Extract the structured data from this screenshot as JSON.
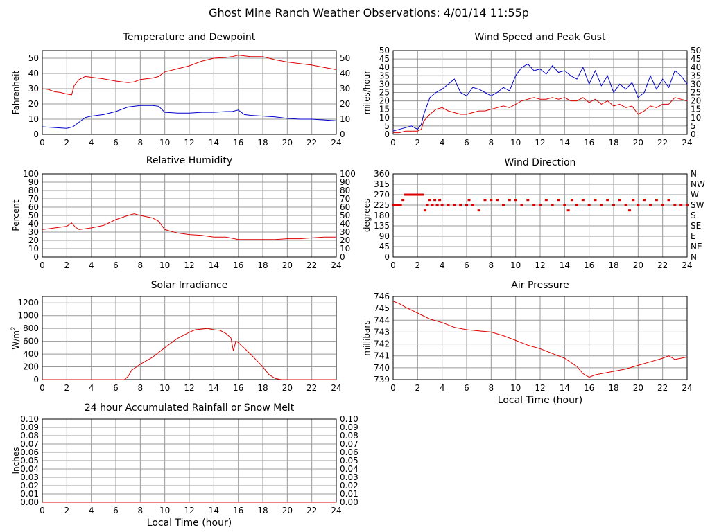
{
  "page_title": "Ghost Mine Ranch Weather Observations: 4/01/14 11:55p",
  "colors": {
    "series_red": "#dd0000",
    "series_blue": "#0000cc",
    "grid": "#999999",
    "frame": "#000000"
  },
  "chart_data": [
    {
      "id": "temperature",
      "type": "line",
      "title": "Temperature and Dewpoint",
      "xlabel": "",
      "ylabel": "Fahrenheit",
      "xlim": [
        0,
        24
      ],
      "ylim": [
        0,
        55
      ],
      "xticks": [
        0,
        2,
        4,
        6,
        8,
        10,
        12,
        14,
        16,
        18,
        20,
        22,
        24
      ],
      "yticks": [
        0,
        10,
        20,
        30,
        40,
        50
      ],
      "right_yticks": [
        "0",
        "10",
        "20",
        "30",
        "40",
        "50"
      ],
      "grid": true,
      "series": [
        {
          "color": "#dd0000",
          "x": [
            0,
            0.5,
            1,
            1.5,
            2,
            2.4,
            2.6,
            3,
            3.5,
            4,
            5,
            6,
            7,
            7.5,
            8,
            9,
            9.5,
            10,
            11,
            12,
            13,
            14,
            15,
            15.5,
            16,
            16.5,
            17,
            18,
            19,
            20,
            21,
            22,
            23,
            24
          ],
          "y": [
            30,
            29.5,
            28,
            27.5,
            26.5,
            26,
            32,
            36,
            38,
            37.5,
            36.5,
            35,
            34,
            34.5,
            36,
            37,
            38,
            41,
            43,
            45,
            48,
            50,
            50.5,
            51,
            52,
            51.5,
            51,
            51,
            49,
            47.5,
            46.5,
            45.5,
            44,
            42.5
          ]
        },
        {
          "color": "#0000cc",
          "x": [
            0,
            1,
            2,
            2.5,
            3,
            3.5,
            4,
            5,
            6,
            7,
            8,
            9,
            9.5,
            10,
            11,
            12,
            13,
            14,
            15,
            15.5,
            16,
            16.5,
            17,
            18,
            19,
            20,
            21,
            22,
            23,
            24
          ],
          "y": [
            5,
            4.5,
            4,
            5,
            8,
            11,
            12,
            13,
            15,
            18,
            19,
            19,
            18.5,
            14.5,
            14,
            14,
            14.5,
            14.5,
            15,
            15,
            16,
            13,
            12.5,
            12,
            11.5,
            10.5,
            10,
            10,
            9.5,
            9
          ]
        }
      ]
    },
    {
      "id": "wind_speed",
      "type": "line",
      "title": "Wind Speed and Peak Gust",
      "xlabel": "",
      "ylabel": "miles/hour",
      "xlim": [
        0,
        24
      ],
      "ylim": [
        0,
        50
      ],
      "xticks": [
        0,
        2,
        4,
        6,
        8,
        10,
        12,
        14,
        16,
        18,
        20,
        22,
        24
      ],
      "yticks": [
        0,
        5,
        10,
        15,
        20,
        25,
        30,
        35,
        40,
        45,
        50
      ],
      "right_yticks": [
        "0",
        "5",
        "10",
        "15",
        "20",
        "25",
        "30",
        "35",
        "40",
        "45",
        "50"
      ],
      "grid": true,
      "series": [
        {
          "color": "#0000cc",
          "x": [
            0,
            0.5,
            1,
            1.5,
            2,
            2.3,
            2.5,
            3,
            3.5,
            4,
            4.5,
            5,
            5.5,
            6,
            6.5,
            7,
            7.5,
            8,
            8.5,
            9,
            9.5,
            10,
            10.5,
            11,
            11.5,
            12,
            12.5,
            13,
            13.5,
            14,
            14.5,
            15,
            15.5,
            16,
            16.5,
            17,
            17.5,
            18,
            18.5,
            19,
            19.5,
            20,
            20.5,
            21,
            21.5,
            22,
            22.5,
            23,
            23.5,
            24
          ],
          "y": [
            2,
            3,
            4,
            5,
            3,
            6,
            12,
            22,
            25,
            27,
            30,
            33,
            25,
            23,
            28,
            27,
            25,
            23,
            25,
            28,
            26,
            35,
            40,
            42,
            38,
            39,
            36,
            41,
            37,
            38,
            35,
            33,
            40,
            30,
            38,
            29,
            35,
            25,
            30,
            27,
            31,
            22,
            25,
            35,
            27,
            33,
            28,
            38,
            35,
            30
          ]
        },
        {
          "color": "#dd0000",
          "x": [
            0,
            0.5,
            1,
            1.5,
            2,
            2.3,
            2.5,
            3,
            3.5,
            4,
            4.5,
            5,
            5.5,
            6,
            6.5,
            7,
            7.5,
            8,
            8.5,
            9,
            9.5,
            10,
            10.5,
            11,
            11.5,
            12,
            12.5,
            13,
            13.5,
            14,
            14.5,
            15,
            15.5,
            16,
            16.5,
            17,
            17.5,
            18,
            18.5,
            19,
            19.5,
            20,
            20.5,
            21,
            21.5,
            22,
            22.5,
            23,
            23.5,
            24
          ],
          "y": [
            1,
            1,
            2,
            2,
            2,
            3,
            8,
            12,
            15,
            16,
            14,
            13,
            12,
            12,
            13,
            14,
            14,
            15,
            16,
            17,
            16,
            18,
            20,
            21,
            22,
            21,
            21,
            22,
            21,
            22,
            20,
            20,
            22,
            19,
            21,
            18,
            20,
            17,
            18,
            16,
            17,
            12,
            14,
            17,
            16,
            18,
            18,
            22,
            21,
            20
          ]
        }
      ]
    },
    {
      "id": "humidity",
      "type": "line",
      "title": "Relative Humidity",
      "xlabel": "",
      "ylabel": "Percent",
      "xlim": [
        0,
        24
      ],
      "ylim": [
        0,
        100
      ],
      "xticks": [
        0,
        2,
        4,
        6,
        8,
        10,
        12,
        14,
        16,
        18,
        20,
        22,
        24
      ],
      "yticks": [
        0,
        10,
        20,
        30,
        40,
        50,
        60,
        70,
        80,
        90,
        100
      ],
      "right_yticks": [
        "0",
        "10",
        "20",
        "30",
        "40",
        "50",
        "60",
        "70",
        "80",
        "90",
        "100"
      ],
      "grid": true,
      "series": [
        {
          "color": "#dd0000",
          "x": [
            0,
            1,
            2,
            2.4,
            2.7,
            3,
            4,
            5,
            6,
            7,
            7.5,
            8,
            9,
            9.5,
            10,
            11,
            12,
            13,
            14,
            15,
            16,
            17,
            18,
            19,
            20,
            21,
            22,
            23,
            24
          ],
          "y": [
            33,
            35,
            37,
            41,
            36,
            33,
            35,
            38,
            45,
            50,
            52,
            50,
            47,
            43,
            33,
            29,
            27,
            26,
            24,
            24,
            21,
            21,
            21,
            21,
            22,
            22,
            23,
            24,
            24
          ]
        }
      ]
    },
    {
      "id": "wind_direction",
      "type": "scatter",
      "title": "Wind Direction",
      "xlabel": "",
      "ylabel": "degrees",
      "xlim": [
        0,
        24
      ],
      "ylim": [
        0,
        360
      ],
      "xticks": [
        0,
        2,
        4,
        6,
        8,
        10,
        12,
        14,
        16,
        18,
        20,
        22,
        24
      ],
      "yticks": [
        0,
        45,
        90,
        135,
        180,
        225,
        270,
        315,
        360
      ],
      "right_yticks": [
        "N",
        "NE",
        "E",
        "SE",
        "S",
        "SW",
        "W",
        "NW",
        "N"
      ],
      "grid": true,
      "series": [
        {
          "color": "#dd0000",
          "x": [
            0,
            0.2,
            0.4,
            0.6,
            0.8,
            1,
            1.2,
            1.4,
            1.6,
            1.8,
            2,
            2.2,
            2.4,
            2.6,
            2.8,
            3,
            3.2,
            3.4,
            3.6,
            3.8,
            4,
            4.5,
            5,
            5.5,
            6,
            6.2,
            6.5,
            7,
            7.5,
            8,
            8.5,
            9,
            9.5,
            10,
            10.5,
            11,
            11.5,
            12,
            12.5,
            13,
            13.5,
            14,
            14.3,
            14.6,
            15,
            15.5,
            16,
            16.5,
            17,
            17.5,
            18,
            18.5,
            19,
            19.3,
            19.6,
            20,
            20.5,
            21,
            21.5,
            22,
            22.5,
            23,
            23.5,
            24
          ],
          "y": [
            225,
            225,
            225,
            225,
            247,
            270,
            270,
            270,
            270,
            270,
            270,
            270,
            270,
            202,
            225,
            247,
            225,
            247,
            225,
            247,
            225,
            225,
            225,
            225,
            225,
            247,
            225,
            202,
            247,
            247,
            247,
            225,
            247,
            247,
            225,
            247,
            225,
            225,
            247,
            225,
            247,
            225,
            202,
            247,
            225,
            247,
            225,
            247,
            225,
            247,
            225,
            247,
            225,
            202,
            247,
            225,
            247,
            225,
            247,
            225,
            247,
            225,
            225,
            225
          ]
        }
      ]
    },
    {
      "id": "solar",
      "type": "line",
      "title": "Solar Irradiance",
      "xlabel": "",
      "ylabel": "W/m",
      "ylabel_sup": "2",
      "xlim": [
        0,
        24
      ],
      "ylim": [
        0,
        1300
      ],
      "xticks": [
        0,
        2,
        4,
        6,
        8,
        10,
        12,
        14,
        16,
        18,
        20,
        22,
        24
      ],
      "yticks": [
        0,
        200,
        400,
        600,
        800,
        1000,
        1200
      ],
      "right_yticks": [],
      "grid": true,
      "series": [
        {
          "color": "#dd0000",
          "x": [
            0,
            6,
            6.7,
            7,
            7.3,
            7.7,
            8,
            9,
            10,
            11,
            12,
            12.5,
            13,
            13.5,
            14,
            14.5,
            15,
            15.4,
            15.6,
            15.8,
            16,
            17,
            17.5,
            18,
            18.5,
            19,
            19.5,
            24
          ],
          "y": [
            0,
            0,
            0,
            50,
            150,
            200,
            240,
            350,
            500,
            640,
            740,
            780,
            790,
            800,
            780,
            770,
            720,
            650,
            450,
            600,
            580,
            400,
            300,
            200,
            80,
            20,
            0,
            0
          ]
        }
      ]
    },
    {
      "id": "pressure",
      "type": "line",
      "title": "Air Pressure",
      "xlabel": "Local Time (hour)",
      "ylabel": "millibars",
      "xlim": [
        0,
        24
      ],
      "ylim": [
        739,
        746
      ],
      "xticks": [
        0,
        2,
        4,
        6,
        8,
        10,
        12,
        14,
        16,
        18,
        20,
        22,
        24
      ],
      "yticks": [
        739,
        740,
        741,
        742,
        743,
        744,
        745,
        746
      ],
      "right_yticks": [],
      "grid": true,
      "series": [
        {
          "color": "#dd0000",
          "x": [
            0,
            0.5,
            1,
            2,
            3,
            4,
            5,
            6,
            7,
            8,
            9,
            10,
            11,
            12,
            13,
            14,
            15,
            15.5,
            16,
            16.5,
            17,
            18,
            19,
            20,
            21,
            22,
            22.5,
            23,
            24
          ],
          "y": [
            745.6,
            745.4,
            745.1,
            744.6,
            744.1,
            743.8,
            743.4,
            743.2,
            743.1,
            743.0,
            742.7,
            742.3,
            741.9,
            741.6,
            741.2,
            740.8,
            740.1,
            739.5,
            739.2,
            739.4,
            739.5,
            739.7,
            739.9,
            740.2,
            740.5,
            740.8,
            741.0,
            740.7,
            740.9
          ]
        }
      ]
    },
    {
      "id": "rainfall",
      "type": "line",
      "title": "24 hour Accumulated Rainfall or Snow Melt",
      "xlabel": "Local Time (hour)",
      "ylabel": "Inches",
      "xlim": [
        0,
        24
      ],
      "ylim": [
        0,
        0.1
      ],
      "xticks": [
        0,
        2,
        4,
        6,
        8,
        10,
        12,
        14,
        16,
        18,
        20,
        22,
        24
      ],
      "yticks": [
        "0.00",
        "0.01",
        "0.02",
        "0.03",
        "0.04",
        "0.05",
        "0.06",
        "0.07",
        "0.08",
        "0.09",
        "0.10"
      ],
      "right_yticks": [
        "0.00",
        "0.01",
        "0.02",
        "0.03",
        "0.04",
        "0.05",
        "0.06",
        "0.07",
        "0.08",
        "0.09",
        "0.10"
      ],
      "grid": true,
      "series": [
        {
          "color": "#dd0000",
          "x": [
            0,
            24
          ],
          "y": [
            0,
            0
          ]
        }
      ]
    }
  ]
}
